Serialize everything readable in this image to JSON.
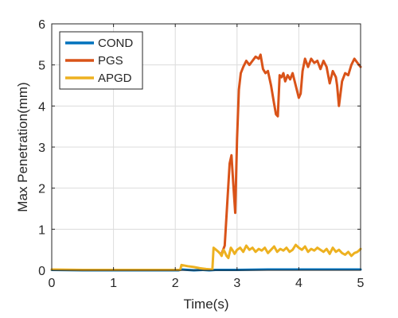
{
  "chart_data": {
    "type": "line",
    "xlabel": "Time(s)",
    "ylabel": "Max Penetration(mm)",
    "xlim": [
      0,
      5
    ],
    "ylim": [
      0,
      6
    ],
    "xticks": [
      "0",
      "1",
      "2",
      "3",
      "4",
      "5"
    ],
    "yticks": [
      "0",
      "1",
      "2",
      "3",
      "4",
      "5",
      "6"
    ],
    "grid": true,
    "legend_position": "top-left",
    "series": [
      {
        "name": "COND",
        "color": "#0072BD",
        "x": [
          0,
          0.5,
          1.0,
          1.5,
          2.0,
          2.05,
          2.1,
          2.2,
          2.3,
          2.45,
          2.55,
          2.65,
          2.8,
          3.0,
          3.5,
          4.0,
          4.5,
          5.0
        ],
        "y": [
          0.01,
          0.0,
          0.0,
          0.0,
          0.0,
          0.0,
          0.02,
          0.01,
          0.0,
          0.01,
          0.0,
          0.01,
          0.01,
          0.01,
          0.02,
          0.02,
          0.02,
          0.02
        ]
      },
      {
        "name": "PGS",
        "color": "#D95319",
        "x": [
          2.75,
          2.8,
          2.84,
          2.88,
          2.91,
          2.94,
          2.97,
          3.0,
          3.03,
          3.06,
          3.1,
          3.15,
          3.2,
          3.25,
          3.3,
          3.35,
          3.38,
          3.42,
          3.46,
          3.5,
          3.55,
          3.6,
          3.63,
          3.66,
          3.69,
          3.72,
          3.75,
          3.78,
          3.82,
          3.86,
          3.9,
          3.95,
          4.0,
          4.03,
          4.06,
          4.1,
          4.15,
          4.2,
          4.25,
          4.3,
          4.35,
          4.4,
          4.45,
          4.5,
          4.55,
          4.6,
          4.62,
          4.65,
          4.7,
          4.75,
          4.8,
          4.85,
          4.9,
          4.95,
          5.0
        ],
        "y": [
          0.4,
          0.6,
          1.6,
          2.6,
          2.8,
          2.1,
          1.4,
          3.2,
          4.4,
          4.8,
          4.95,
          5.1,
          5.0,
          5.1,
          5.2,
          5.15,
          5.25,
          4.9,
          4.8,
          4.85,
          4.5,
          4.05,
          3.8,
          3.75,
          4.75,
          4.7,
          4.8,
          4.6,
          4.75,
          4.65,
          4.8,
          4.5,
          4.2,
          4.3,
          4.85,
          5.15,
          4.95,
          5.15,
          5.05,
          5.1,
          4.9,
          5.1,
          4.95,
          4.55,
          4.85,
          4.7,
          4.5,
          4.0,
          4.6,
          4.8,
          4.75,
          5.0,
          5.15,
          5.05,
          4.95
        ]
      },
      {
        "name": "APGD",
        "color": "#EDB120",
        "x": [
          0,
          0.5,
          1.0,
          1.5,
          2.0,
          2.08,
          2.1,
          2.2,
          2.3,
          2.4,
          2.5,
          2.6,
          2.62,
          2.66,
          2.7,
          2.73,
          2.75,
          2.78,
          2.8,
          2.83,
          2.86,
          2.9,
          2.93,
          2.96,
          3.0,
          3.05,
          3.1,
          3.15,
          3.2,
          3.25,
          3.3,
          3.35,
          3.4,
          3.45,
          3.5,
          3.55,
          3.6,
          3.65,
          3.7,
          3.75,
          3.8,
          3.85,
          3.9,
          3.95,
          4.0,
          4.05,
          4.1,
          4.15,
          4.2,
          4.25,
          4.3,
          4.35,
          4.4,
          4.45,
          4.5,
          4.55,
          4.6,
          4.65,
          4.7,
          4.75,
          4.8,
          4.85,
          4.9,
          4.95,
          5.0
        ],
        "y": [
          0.02,
          0.01,
          0.01,
          0.01,
          0.01,
          0.01,
          0.13,
          0.1,
          0.08,
          0.05,
          0.03,
          0.02,
          0.55,
          0.5,
          0.45,
          0.4,
          0.35,
          0.5,
          0.45,
          0.35,
          0.3,
          0.55,
          0.48,
          0.4,
          0.5,
          0.55,
          0.45,
          0.6,
          0.5,
          0.55,
          0.45,
          0.52,
          0.48,
          0.55,
          0.42,
          0.5,
          0.58,
          0.45,
          0.52,
          0.48,
          0.55,
          0.45,
          0.5,
          0.62,
          0.55,
          0.5,
          0.58,
          0.45,
          0.52,
          0.48,
          0.55,
          0.5,
          0.45,
          0.52,
          0.4,
          0.55,
          0.45,
          0.5,
          0.42,
          0.38,
          0.45,
          0.35,
          0.42,
          0.45,
          0.52
        ]
      }
    ]
  }
}
